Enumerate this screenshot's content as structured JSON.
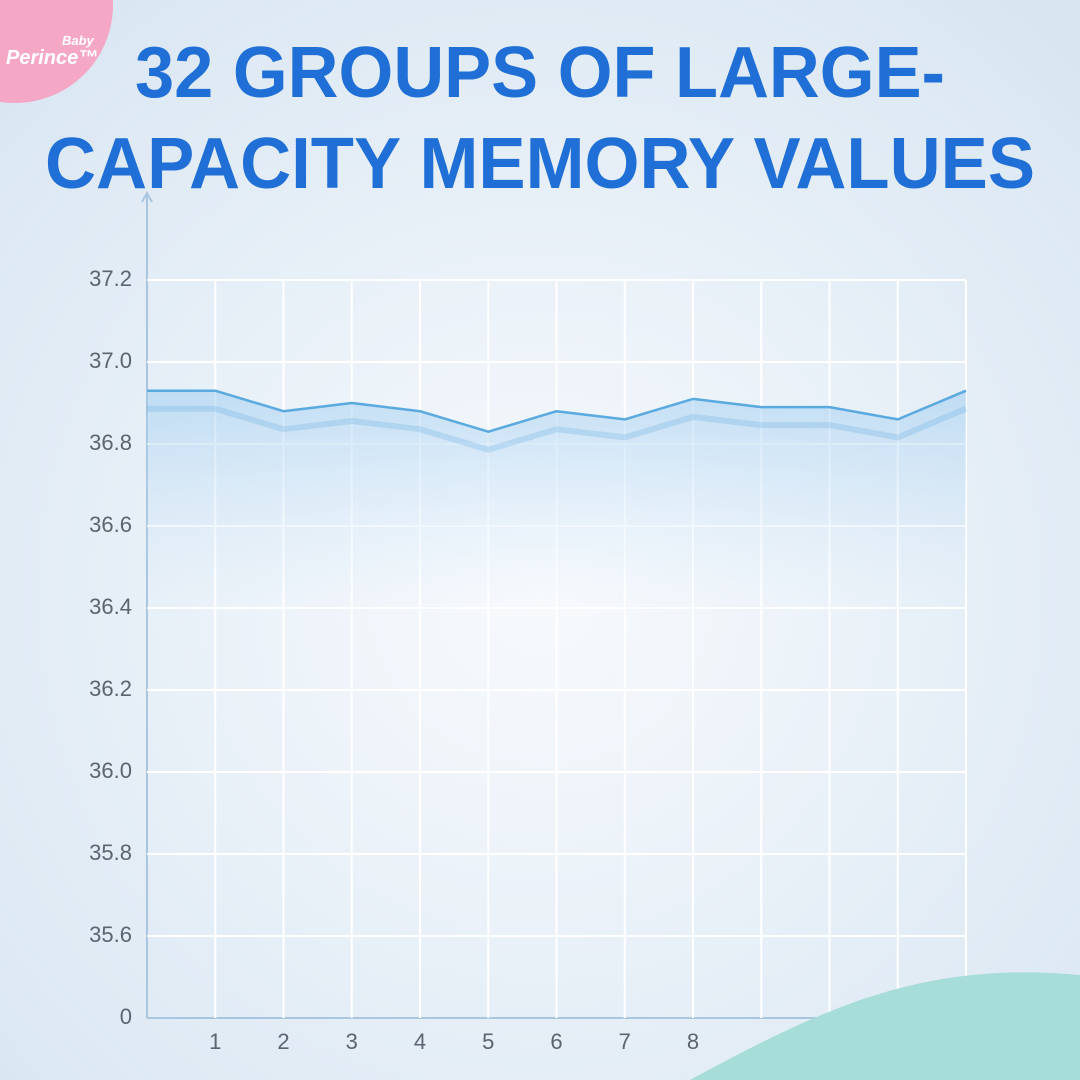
{
  "logo": [
    "Baby",
    "Perince™"
  ],
  "chart_data": {
    "type": "line",
    "title": [
      "32 GROUPS OF LARGE-",
      "CAPACITY MEMORY VALUES"
    ],
    "categories": [
      null,
      "1",
      "2",
      "3",
      "4",
      "5",
      "6",
      "7",
      "8",
      "...",
      null,
      null,
      null
    ],
    "series": [
      {
        "color": "#5aa9df",
        "values": [
          36.93,
          36.93,
          36.88,
          36.9,
          36.88,
          36.83,
          36.88,
          36.86,
          36.91,
          36.89,
          36.89,
          36.86,
          36.93
        ]
      }
    ],
    "ylim": [
      0,
      37.2
    ],
    "yticks": [
      0,
      {
        "value": 35.6,
        "label": "35.6"
      },
      35.8,
      {
        "value": 36,
        "label": "36.0"
      },
      36.2,
      36.4,
      36.6,
      36.8,
      {
        "value": 37,
        "label": "37.0"
      },
      37.2
    ],
    "grid": true
  }
}
